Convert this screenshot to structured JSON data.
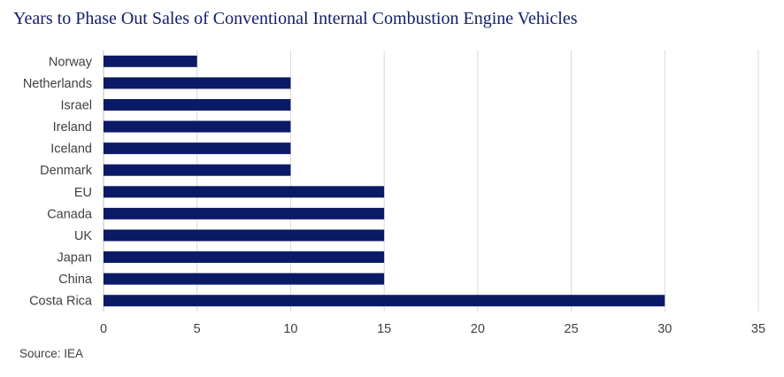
{
  "chart_data": {
    "type": "bar",
    "orientation": "horizontal",
    "title": "Years to Phase Out Sales of Conventional Internal Combustion Engine Vehicles",
    "categories": [
      "Norway",
      "Netherlands",
      "Israel",
      "Ireland",
      "Iceland",
      "Denmark",
      "EU",
      "Canada",
      "UK",
      "Japan",
      "China",
      "Costa Rica"
    ],
    "values": [
      5,
      10,
      10,
      10,
      10,
      10,
      15,
      15,
      15,
      15,
      15,
      30
    ],
    "xlim": [
      0,
      35
    ],
    "xticks": [
      0,
      5,
      10,
      15,
      20,
      25,
      30,
      35
    ],
    "grid": "vertical",
    "legend": "none",
    "bar_color": "#0b1a66",
    "grid_color": "#d9d9d9",
    "title_color": "#14206b",
    "source": "Source: IEA"
  }
}
